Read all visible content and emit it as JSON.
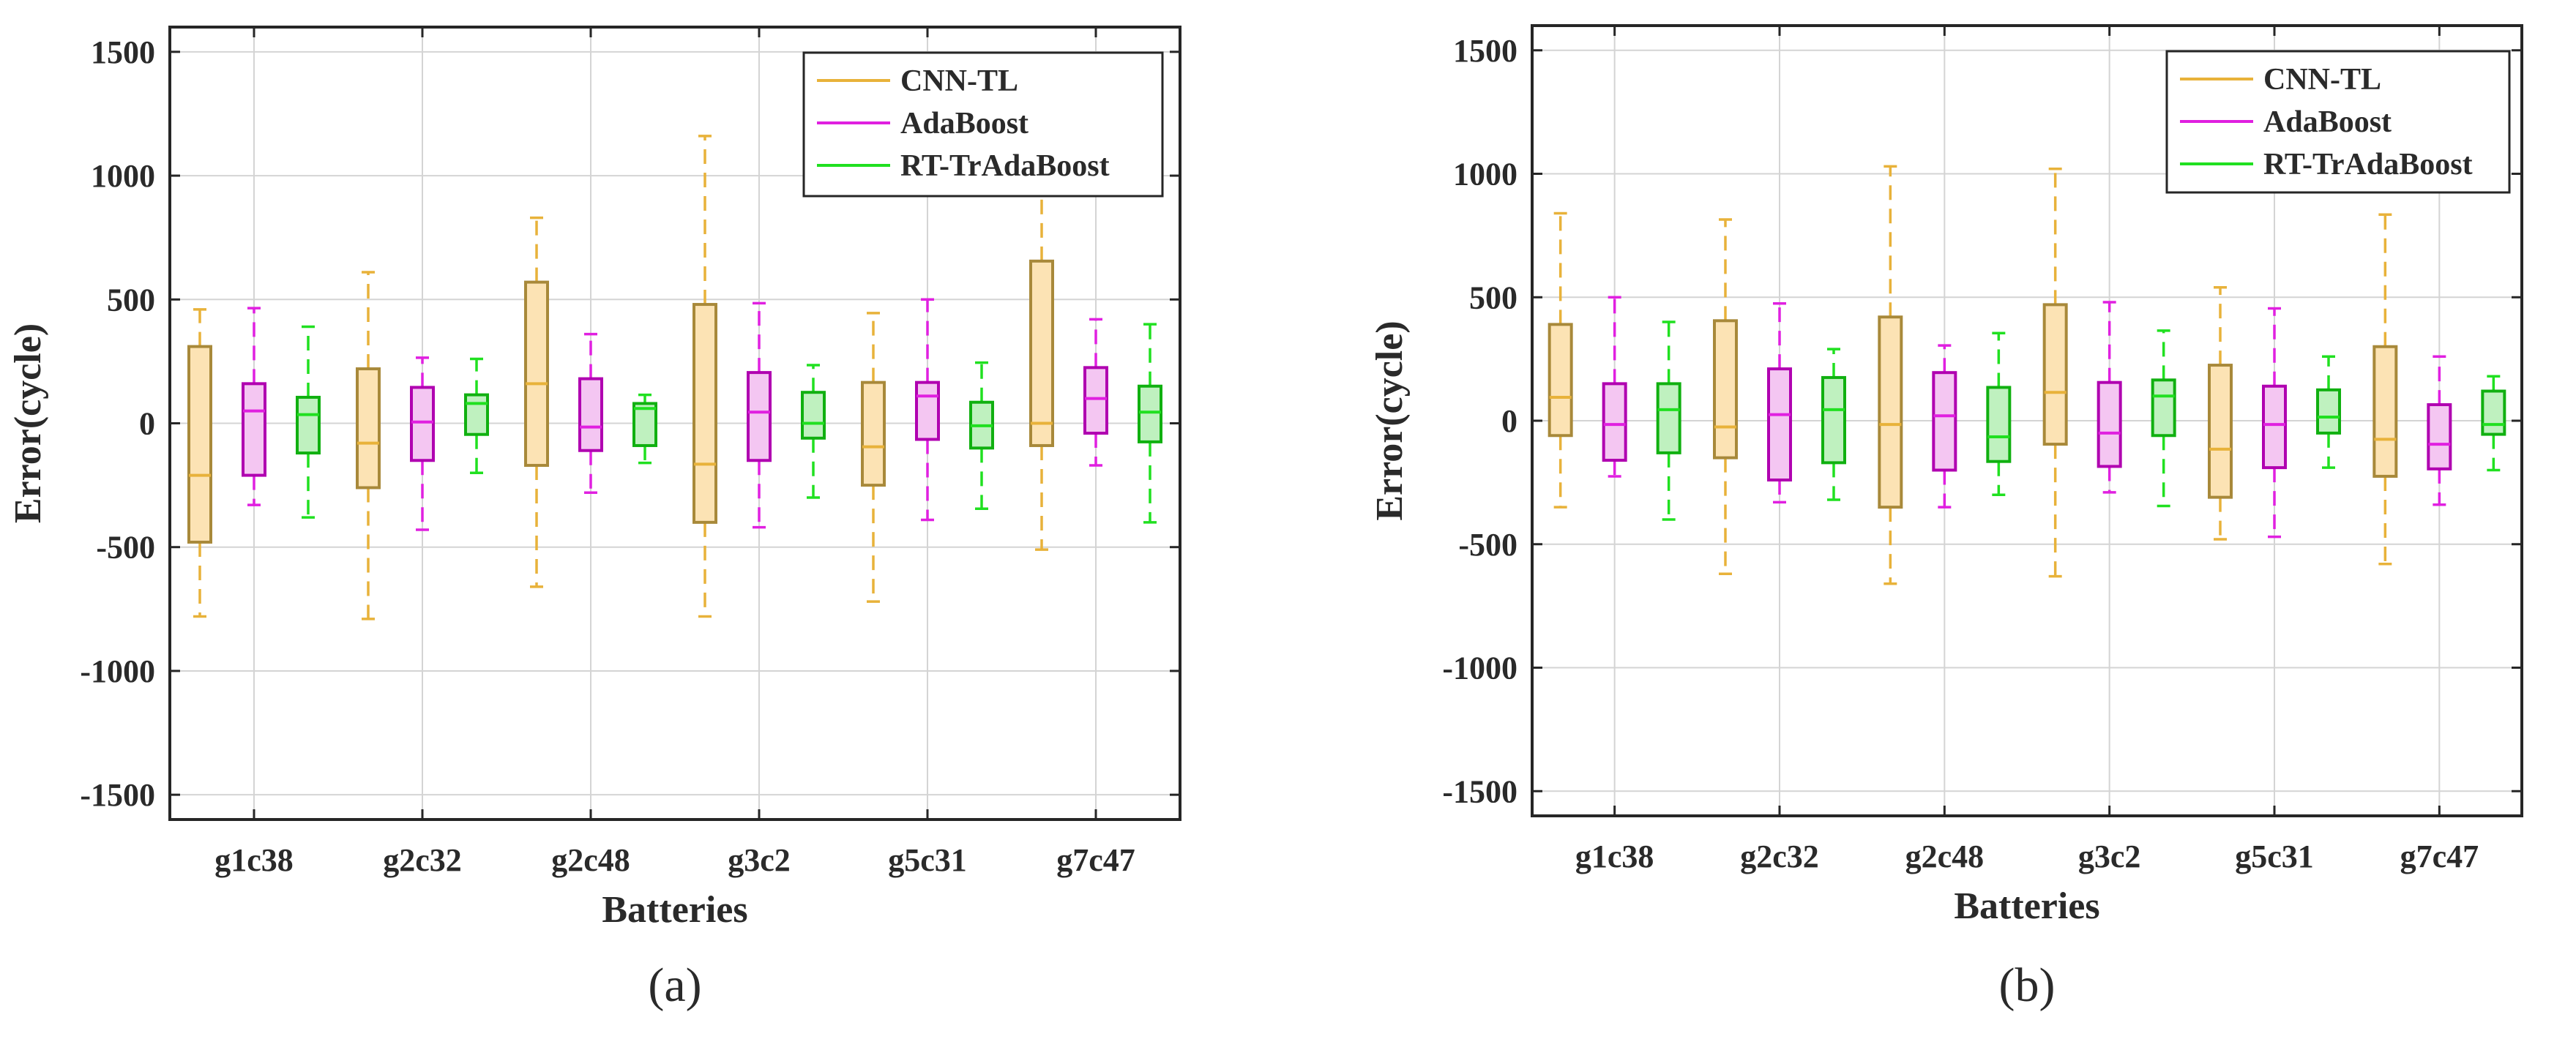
{
  "chart_data": [
    {
      "type": "box",
      "panel_label": "(a)",
      "xlabel": "Batteries",
      "ylabel": "Error(cycle)",
      "ylim": [
        -1600,
        1600
      ],
      "yticks": [
        -1500,
        -1000,
        -500,
        0,
        500,
        1000,
        1500
      ],
      "grid": true,
      "legend_position": "top-right",
      "categories": [
        "g1c38",
        "g2c32",
        "g2c48",
        "g3c2",
        "g5c31",
        "g7c47"
      ],
      "series": [
        {
          "name": "CNN-TL",
          "color": "#E8B23A",
          "edge": "#A8893A",
          "fill": "#FCE3B4",
          "boxes": [
            {
              "min": -780,
              "q1": -480,
              "median": -210,
              "q3": 310,
              "max": 460
            },
            {
              "min": -790,
              "q1": -260,
              "median": -80,
              "q3": 220,
              "max": 610
            },
            {
              "min": -660,
              "q1": -170,
              "median": 160,
              "q3": 570,
              "max": 830
            },
            {
              "min": -780,
              "q1": -400,
              "median": -165,
              "q3": 480,
              "max": 1160
            },
            {
              "min": -720,
              "q1": -250,
              "median": -95,
              "q3": 165,
              "max": 445
            },
            {
              "min": -510,
              "q1": -90,
              "median": 0,
              "q3": 655,
              "max": 945
            }
          ]
        },
        {
          "name": "AdaBoost",
          "color": "#E020E0",
          "edge": "#B000B0",
          "fill": "#F4C6F2",
          "boxes": [
            {
              "min": -330,
              "q1": -210,
              "median": 50,
              "q3": 160,
              "max": 465
            },
            {
              "min": -430,
              "q1": -150,
              "median": 5,
              "q3": 145,
              "max": 265
            },
            {
              "min": -280,
              "q1": -110,
              "median": -15,
              "q3": 180,
              "max": 360
            },
            {
              "min": -420,
              "q1": -150,
              "median": 45,
              "q3": 205,
              "max": 485
            },
            {
              "min": -390,
              "q1": -65,
              "median": 110,
              "q3": 165,
              "max": 500
            },
            {
              "min": -170,
              "q1": -40,
              "median": 100,
              "q3": 225,
              "max": 420
            }
          ]
        },
        {
          "name": "RT-TrAdaBoost",
          "color": "#20E020",
          "edge": "#10B010",
          "fill": "#BFF1BF",
          "boxes": [
            {
              "min": -380,
              "q1": -120,
              "median": 35,
              "q3": 105,
              "max": 390
            },
            {
              "min": -200,
              "q1": -45,
              "median": 80,
              "q3": 115,
              "max": 260
            },
            {
              "min": -160,
              "q1": -90,
              "median": 60,
              "q3": 80,
              "max": 115
            },
            {
              "min": -300,
              "q1": -60,
              "median": 0,
              "q3": 125,
              "max": 235
            },
            {
              "min": -345,
              "q1": -100,
              "median": -10,
              "q3": 85,
              "max": 245
            },
            {
              "min": -400,
              "q1": -75,
              "median": 45,
              "q3": 150,
              "max": 400
            }
          ]
        }
      ]
    },
    {
      "type": "box",
      "panel_label": "(b)",
      "xlabel": "Batteries",
      "ylabel": "Error(cycle)",
      "ylim": [
        -1600,
        1600
      ],
      "yticks": [
        -1500,
        -1000,
        -500,
        0,
        500,
        1000,
        1500
      ],
      "grid": true,
      "legend_position": "top-right",
      "categories": [
        "g1c38",
        "g2c32",
        "g2c48",
        "g3c2",
        "g5c31",
        "g7c47"
      ],
      "series": [
        {
          "name": "CNN-TL",
          "color": "#E8B23A",
          "edge": "#A8893A",
          "fill": "#FCE3B4",
          "boxes": [
            {
              "min": -350,
              "q1": -60,
              "median": 95,
              "q3": 390,
              "max": 840
            },
            {
              "min": -620,
              "q1": -150,
              "median": -25,
              "q3": 405,
              "max": 815
            },
            {
              "min": -660,
              "q1": -350,
              "median": -15,
              "q3": 420,
              "max": 1030
            },
            {
              "min": -630,
              "q1": -95,
              "median": 115,
              "q3": 470,
              "max": 1020
            },
            {
              "min": -480,
              "q1": -310,
              "median": -115,
              "q3": 225,
              "max": 540
            },
            {
              "min": -580,
              "q1": -225,
              "median": -75,
              "q3": 300,
              "max": 835
            }
          ]
        },
        {
          "name": "AdaBoost",
          "color": "#E020E0",
          "edge": "#B000B0",
          "fill": "#F4C6F2",
          "boxes": [
            {
              "min": -225,
              "q1": -160,
              "median": -15,
              "q3": 150,
              "max": 500
            },
            {
              "min": -330,
              "q1": -240,
              "median": 25,
              "q3": 210,
              "max": 475
            },
            {
              "min": -350,
              "q1": -200,
              "median": 20,
              "q3": 195,
              "max": 305
            },
            {
              "min": -290,
              "q1": -185,
              "median": -50,
              "q3": 155,
              "max": 480
            },
            {
              "min": -470,
              "q1": -190,
              "median": -15,
              "q3": 140,
              "max": 455
            },
            {
              "min": -340,
              "q1": -195,
              "median": -95,
              "q3": 65,
              "max": 260
            }
          ]
        },
        {
          "name": "RT-TrAdaBoost",
          "color": "#20E020",
          "edge": "#10B010",
          "fill": "#BFF1BF",
          "boxes": [
            {
              "min": -400,
              "q1": -130,
              "median": 45,
              "q3": 150,
              "max": 400
            },
            {
              "min": -320,
              "q1": -170,
              "median": 45,
              "q3": 175,
              "max": 290
            },
            {
              "min": -300,
              "q1": -165,
              "median": -65,
              "q3": 135,
              "max": 355
            },
            {
              "min": -345,
              "q1": -60,
              "median": 100,
              "q3": 165,
              "max": 365
            },
            {
              "min": -190,
              "q1": -50,
              "median": 15,
              "q3": 125,
              "max": 260
            },
            {
              "min": -200,
              "q1": -55,
              "median": -15,
              "q3": 120,
              "max": 180
            }
          ]
        }
      ]
    }
  ]
}
